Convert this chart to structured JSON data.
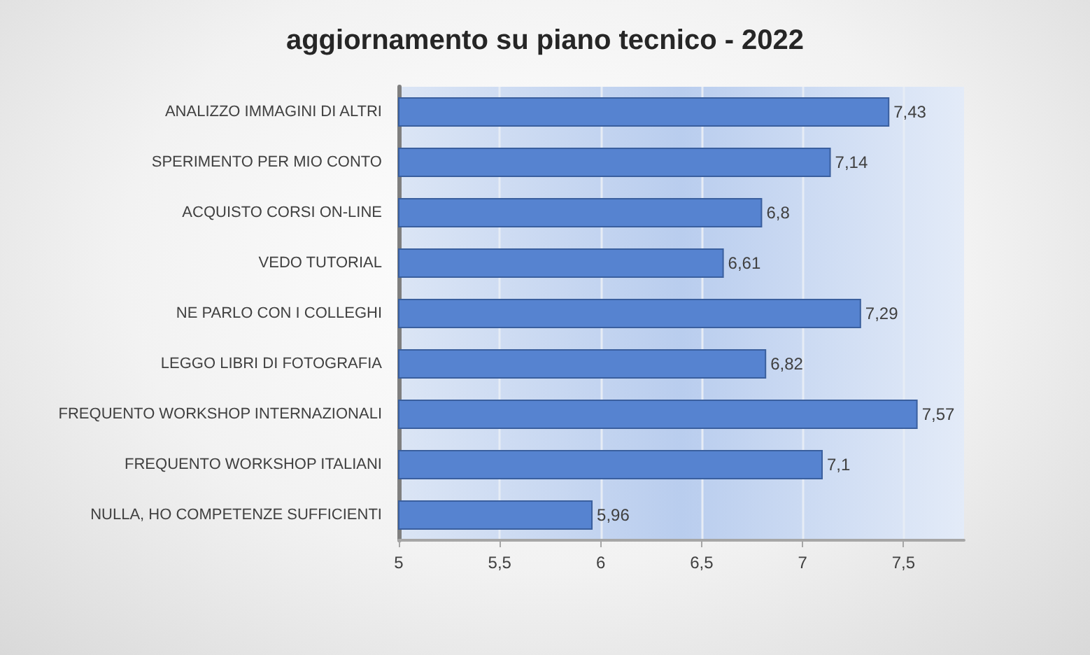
{
  "chart_data": {
    "type": "bar",
    "orientation": "horizontal",
    "title": "aggiornamento su piano tecnico - 2022",
    "categories": [
      "ANALIZZO IMMAGINI DI ALTRI",
      "SPERIMENTO PER MIO CONTO",
      "ACQUISTO CORSI ON-LINE",
      "VEDO TUTORIAL",
      "NE PARLO CON I COLLEGHI",
      "LEGGO LIBRI DI FOTOGRAFIA",
      "FREQUENTO WORKSHOP INTERNAZIONALI",
      "FREQUENTO WORKSHOP ITALIANI",
      "NULLA, HO COMPETENZE SUFFICIENTI"
    ],
    "values": [
      7.43,
      7.14,
      6.8,
      6.61,
      7.29,
      6.82,
      7.57,
      7.1,
      5.96
    ],
    "value_labels": [
      "7,43",
      "7,14",
      "6,8",
      "6,61",
      "7,29",
      "6,82",
      "7,57",
      "7,1",
      "5,96"
    ],
    "color": "#5683d0",
    "xlim": [
      5,
      7.8
    ],
    "xticks": [
      5,
      {
        "value": 5.5,
        "label": "5,5"
      },
      6,
      {
        "value": 6.5,
        "label": "6,5"
      },
      7,
      {
        "value": 7.5,
        "label": "7,5"
      }
    ],
    "grid": "x"
  }
}
